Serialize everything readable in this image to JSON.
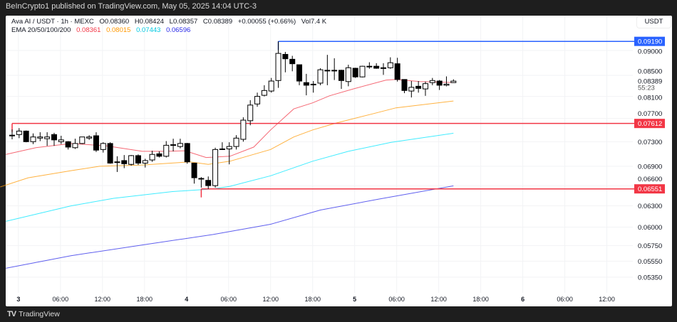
{
  "header": {
    "published": "BeInCrypto1 published on TradingView.com, May 05, 2025 14:04 UTC-3"
  },
  "legend": {
    "symbol": "Ava AI / USDT · 1h · MEXC",
    "open": "O0.08360",
    "high": "H0.08424",
    "low": "L0.08357",
    "close": "C0.08389",
    "change": "+0.00055 (+0.66%)",
    "volume": "Vol7.4 K",
    "ema_label": "EMA 20/50/100/200",
    "ema20": "0.08361",
    "ema50": "0.08015",
    "ema100": "0.07443",
    "ema200": "0.06596"
  },
  "axis": {
    "currency": "USDT",
    "countdown": "55:23"
  },
  "footer": {
    "brand": "TradingView",
    "logo": "17"
  },
  "colors": {
    "ema20": "#f23645",
    "ema50": "#ff9800",
    "ema100": "#00e5ff",
    "ema200": "#2a2ae8",
    "resistance": "#2962ff",
    "support": "#f23645"
  },
  "chart_data": {
    "type": "candlestick",
    "scale": "log",
    "y_ticks": [
      0.09,
      0.085,
      0.081,
      0.077,
      0.073,
      0.069,
      0.066,
      0.063,
      0.06,
      0.0575,
      0.0555,
      0.0535
    ],
    "y_tick_labels": [
      "0.09000",
      "0.08500",
      "0.08100",
      "0.07700",
      "0.07300",
      "0.06900",
      "0.06600",
      "0.06300",
      "0.06000",
      "0.05750",
      "0.05550",
      "0.05350"
    ],
    "x_ticks": [
      {
        "label": "3",
        "bold": true
      },
      {
        "label": "06:00"
      },
      {
        "label": "12:00"
      },
      {
        "label": "18:00"
      },
      {
        "label": "4",
        "bold": true
      },
      {
        "label": "06:00"
      },
      {
        "label": "12:00"
      },
      {
        "label": "18:00"
      },
      {
        "label": "5",
        "bold": true
      },
      {
        "label": "06:00"
      },
      {
        "label": "12:00"
      },
      {
        "label": "18:00"
      },
      {
        "label": "6",
        "bold": true
      },
      {
        "label": "06:00"
      },
      {
        "label": "12:00"
      }
    ],
    "last_price": {
      "value": 0.08389,
      "label": "0.08389"
    },
    "levels": [
      {
        "value": 0.0919,
        "label": "0.09190",
        "color": "#2962ff",
        "from_index": 38
      },
      {
        "value": 0.07612,
        "label": "0.07612",
        "color": "#f23645",
        "from_index": 0
      },
      {
        "value": 0.06551,
        "label": "0.06551",
        "color": "#f23645",
        "from_index": 27
      }
    ],
    "candles": [
      [
        0.0741,
        0.0751,
        0.0734,
        0.0741
      ],
      [
        0.0742,
        0.0753,
        0.0736,
        0.0748
      ],
      [
        0.0748,
        0.0749,
        0.0729,
        0.073
      ],
      [
        0.073,
        0.0744,
        0.0726,
        0.0738
      ],
      [
        0.0736,
        0.0746,
        0.0731,
        0.0738
      ],
      [
        0.0735,
        0.0746,
        0.0723,
        0.0738
      ],
      [
        0.0742,
        0.0745,
        0.0723,
        0.0733
      ],
      [
        0.073,
        0.074,
        0.0726,
        0.0733
      ],
      [
        0.073,
        0.0731,
        0.0717,
        0.0721
      ],
      [
        0.072,
        0.0735,
        0.0718,
        0.0727
      ],
      [
        0.0727,
        0.0738,
        0.0726,
        0.0738
      ],
      [
        0.0736,
        0.0741,
        0.0733,
        0.0738
      ],
      [
        0.074,
        0.0746,
        0.0713,
        0.0716
      ],
      [
        0.0717,
        0.0729,
        0.0712,
        0.0727
      ],
      [
        0.0727,
        0.0729,
        0.0694,
        0.0695
      ],
      [
        0.0697,
        0.0706,
        0.0681,
        0.0696
      ],
      [
        0.0699,
        0.0708,
        0.0687,
        0.0694
      ],
      [
        0.0693,
        0.0708,
        0.0691,
        0.0707
      ],
      [
        0.0707,
        0.0709,
        0.0692,
        0.0695
      ],
      [
        0.0695,
        0.0702,
        0.0688,
        0.0699
      ],
      [
        0.07,
        0.0715,
        0.0697,
        0.0709
      ],
      [
        0.071,
        0.0714,
        0.0704,
        0.0706
      ],
      [
        0.0706,
        0.0731,
        0.0704,
        0.0724
      ],
      [
        0.0724,
        0.0735,
        0.0714,
        0.0725
      ],
      [
        0.0722,
        0.0735,
        0.0719,
        0.0727
      ],
      [
        0.0727,
        0.0728,
        0.0694,
        0.0697
      ],
      [
        0.0695,
        0.0695,
        0.0663,
        0.0672
      ],
      [
        0.0671,
        0.0673,
        0.0657,
        0.067
      ],
      [
        0.0668,
        0.0674,
        0.0655,
        0.066
      ],
      [
        0.066,
        0.072,
        0.0657,
        0.0717
      ],
      [
        0.0717,
        0.0729,
        0.0717,
        0.0718
      ],
      [
        0.0718,
        0.0729,
        0.0693,
        0.0722
      ],
      [
        0.0722,
        0.0741,
        0.0717,
        0.0736
      ],
      [
        0.0734,
        0.0772,
        0.073,
        0.0767
      ],
      [
        0.0766,
        0.0803,
        0.0758,
        0.0794
      ],
      [
        0.0796,
        0.0817,
        0.0791,
        0.081
      ],
      [
        0.0812,
        0.0831,
        0.081,
        0.0821
      ],
      [
        0.082,
        0.0845,
        0.0817,
        0.0839
      ],
      [
        0.084,
        0.0919,
        0.0826,
        0.0894
      ],
      [
        0.0892,
        0.0897,
        0.0856,
        0.0883
      ],
      [
        0.0882,
        0.0889,
        0.0858,
        0.0873
      ],
      [
        0.0871,
        0.0871,
        0.0831,
        0.0839
      ],
      [
        0.0836,
        0.0853,
        0.0812,
        0.0831
      ],
      [
        0.0833,
        0.0839,
        0.0817,
        0.0832
      ],
      [
        0.0835,
        0.0864,
        0.0831,
        0.0861
      ],
      [
        0.086,
        0.0891,
        0.0831,
        0.086
      ],
      [
        0.086,
        0.0884,
        0.0841,
        0.0859
      ],
      [
        0.086,
        0.0861,
        0.0824,
        0.084
      ],
      [
        0.0838,
        0.0871,
        0.0829,
        0.0865
      ],
      [
        0.0864,
        0.0865,
        0.0845,
        0.0847
      ],
      [
        0.0847,
        0.0869,
        0.0846,
        0.0868
      ],
      [
        0.0868,
        0.0876,
        0.0863,
        0.0867
      ],
      [
        0.0868,
        0.0874,
        0.0863,
        0.0864
      ],
      [
        0.0865,
        0.0874,
        0.0851,
        0.0864
      ],
      [
        0.0865,
        0.0886,
        0.0863,
        0.0875
      ],
      [
        0.0873,
        0.0885,
        0.0838,
        0.0842
      ],
      [
        0.0842,
        0.0842,
        0.0816,
        0.0821
      ],
      [
        0.082,
        0.0839,
        0.0808,
        0.0827
      ],
      [
        0.0829,
        0.0839,
        0.0817,
        0.0825
      ],
      [
        0.0824,
        0.0838,
        0.0811,
        0.0834
      ],
      [
        0.0836,
        0.0845,
        0.0831,
        0.084
      ],
      [
        0.0839,
        0.0841,
        0.0822,
        0.0831
      ],
      [
        0.0831,
        0.0848,
        0.0829,
        0.0833
      ],
      [
        0.0836,
        0.08424,
        0.08357,
        0.08389
      ]
    ],
    "ema": [
      {
        "name": "EMA20",
        "color": "#f23645",
        "points": [
          [
            -0.9,
            0.0709
          ],
          [
            3.4,
            0.072
          ],
          [
            8.4,
            0.0727
          ],
          [
            13.5,
            0.0723
          ],
          [
            18.6,
            0.0714
          ],
          [
            21.9,
            0.0714
          ],
          [
            24.7,
            0.0715
          ],
          [
            27.7,
            0.0704
          ],
          [
            31.1,
            0.0706
          ],
          [
            34.5,
            0.0721
          ],
          [
            36.9,
            0.075
          ],
          [
            40.2,
            0.0787
          ],
          [
            42.9,
            0.0798
          ],
          [
            45.3,
            0.0811
          ],
          [
            48.7,
            0.0824
          ],
          [
            53.4,
            0.0841
          ],
          [
            54.8,
            0.0842
          ],
          [
            58.2,
            0.0838
          ],
          [
            63,
            0.08361
          ]
        ]
      },
      {
        "name": "EMA50",
        "color": "#ff9800",
        "points": [
          [
            -1.7,
            0.0658
          ],
          [
            2.3,
            0.0672
          ],
          [
            8.4,
            0.0683
          ],
          [
            12.5,
            0.069
          ],
          [
            18.6,
            0.0692
          ],
          [
            25.4,
            0.0697
          ],
          [
            28,
            0.0693
          ],
          [
            31.1,
            0.0698
          ],
          [
            36.9,
            0.0717
          ],
          [
            40.2,
            0.0738
          ],
          [
            42.9,
            0.075
          ],
          [
            46.3,
            0.0762
          ],
          [
            51.4,
            0.0778
          ],
          [
            54.8,
            0.0789
          ],
          [
            63,
            0.08015
          ]
        ]
      },
      {
        "name": "EMA100",
        "color": "#00e5ff",
        "points": [
          [
            -0.9,
            0.0608
          ],
          [
            8.4,
            0.063
          ],
          [
            14.5,
            0.0641
          ],
          [
            22.9,
            0.0651
          ],
          [
            28.7,
            0.0655
          ],
          [
            31.1,
            0.0659
          ],
          [
            36.9,
            0.0675
          ],
          [
            42.9,
            0.0698
          ],
          [
            48,
            0.0714
          ],
          [
            54.1,
            0.0729
          ],
          [
            63,
            0.07443
          ]
        ]
      },
      {
        "name": "EMA200",
        "color": "#2a2ae8",
        "points": [
          [
            -0.9,
            0.0546
          ],
          [
            8.4,
            0.0562
          ],
          [
            18.6,
            0.0576
          ],
          [
            28.7,
            0.059
          ],
          [
            36.9,
            0.0604
          ],
          [
            44,
            0.0624
          ],
          [
            52.4,
            0.064
          ],
          [
            63,
            0.06596
          ]
        ]
      }
    ]
  }
}
